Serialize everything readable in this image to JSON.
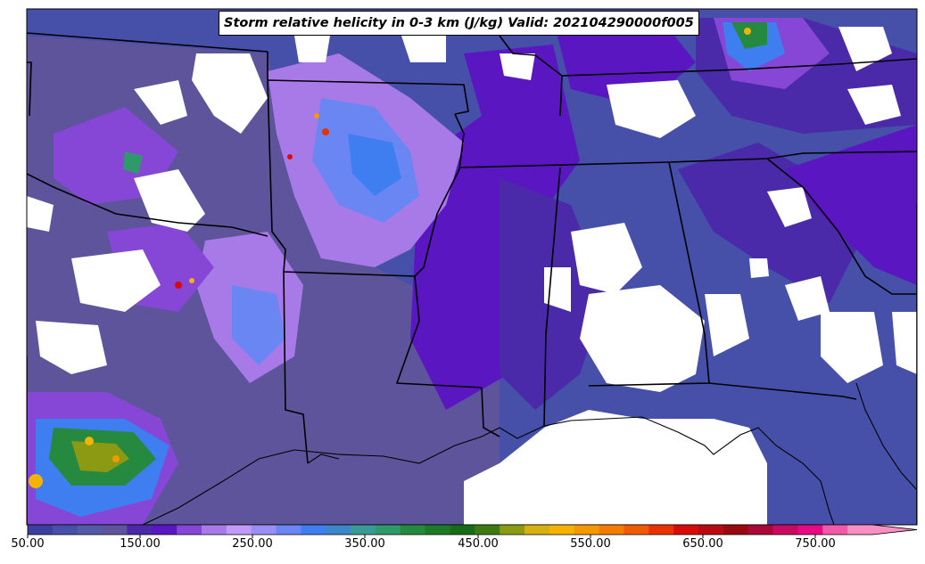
{
  "title": "Storm relative helicity in 0-3 km (J/kg) Valid: 202104290000f005",
  "colorbar": {
    "labels": [
      "50.00",
      "150.00",
      "250.00",
      "350.00",
      "450.00",
      "550.00",
      "650.00",
      "750.00"
    ],
    "colors": [
      "#3b3f9e",
      "#4650a8",
      "#535aa6",
      "#5e549c",
      "#4a2aa8",
      "#5a16c0",
      "#8646d6",
      "#a87ae8",
      "#c39af5",
      "#9a8ef5",
      "#6a86f2",
      "#3f7ef0",
      "#3a86c8",
      "#3a9a96",
      "#2e9a6a",
      "#25893f",
      "#1d7a27",
      "#176d17",
      "#3d7a12",
      "#8a9a12",
      "#d4b010",
      "#f4b300",
      "#f49a00",
      "#f47c00",
      "#f05a00",
      "#e83200",
      "#d80a0a",
      "#b80a10",
      "#980a10",
      "#a8083c",
      "#c80a60",
      "#e80a84",
      "#f458a8",
      "#f890c4"
    ]
  }
}
